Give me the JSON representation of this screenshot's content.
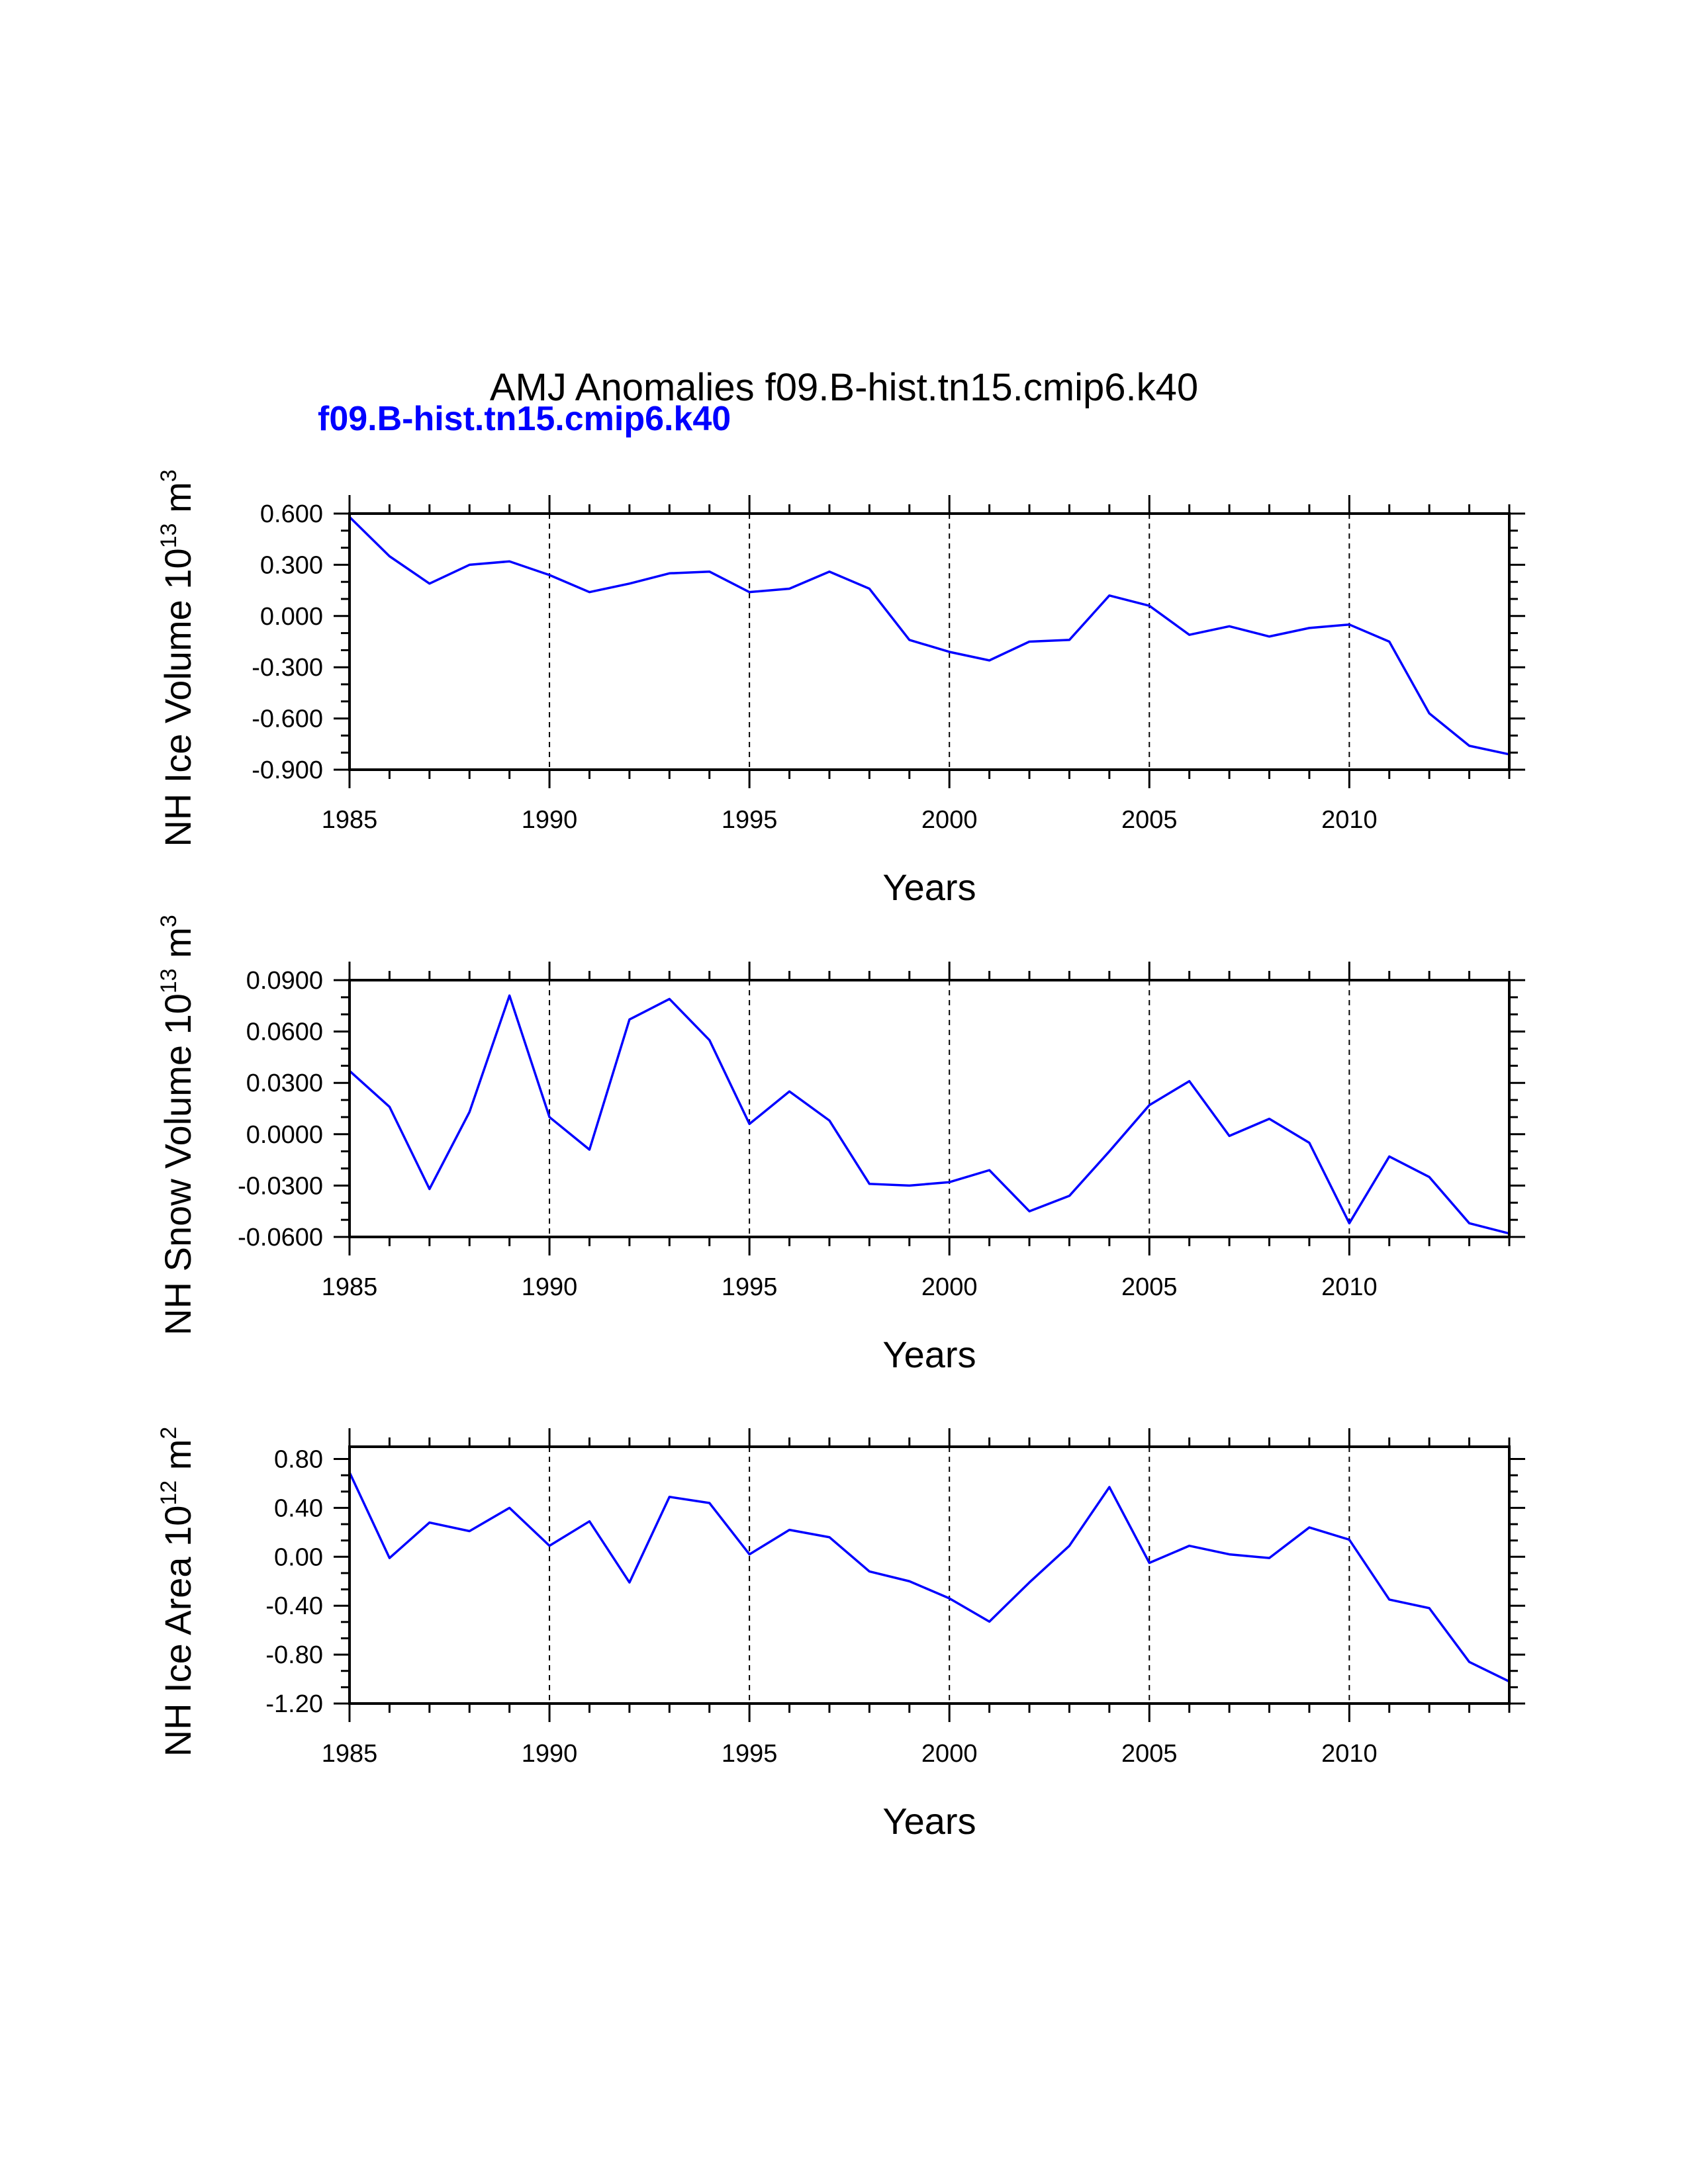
{
  "title": "AMJ Anomalies f09.B-hist.tn15.cmip6.k40",
  "subtitle": "f09.B-hist.tn15.cmip6.k40",
  "colors": {
    "series": "#0000ff",
    "subtitle": "#0000ff",
    "axes": "#000000"
  },
  "chart_data": [
    {
      "type": "line",
      "ylabel": "NH Ice Volume 10",
      "ylabel_exp": "13",
      "ylabel_unit": " m",
      "ylabel_unit_exp": "3",
      "xlabel": "Years",
      "xlim": [
        1985,
        2014
      ],
      "ylim": [
        -0.9,
        0.6
      ],
      "yticks": [
        -0.9,
        -0.6,
        -0.3,
        0.0,
        0.3,
        0.6
      ],
      "ytick_labels": [
        "-0.900",
        "-0.600",
        "-0.300",
        "0.000",
        "0.300",
        "0.600"
      ],
      "xticks": [
        1985,
        1990,
        1995,
        2000,
        2005,
        2010
      ],
      "xtick_labels": [
        "1985",
        "1990",
        "1995",
        "2000",
        "2005",
        "2010"
      ],
      "vlines": [
        1990,
        1995,
        2000,
        2005,
        2010
      ],
      "x": [
        1985,
        1986,
        1987,
        1988,
        1989,
        1990,
        1991,
        1992,
        1993,
        1994,
        1995,
        1996,
        1997,
        1998,
        1999,
        2000,
        2001,
        2002,
        2003,
        2004,
        2005,
        2006,
        2007,
        2008,
        2009,
        2010,
        2011,
        2012,
        2013,
        2014
      ],
      "values": [
        0.58,
        0.35,
        0.19,
        0.3,
        0.32,
        0.24,
        0.14,
        0.19,
        0.25,
        0.26,
        0.14,
        0.16,
        0.26,
        0.16,
        -0.14,
        -0.21,
        -0.26,
        -0.15,
        -0.14,
        0.12,
        0.06,
        -0.11,
        -0.06,
        -0.12,
        -0.07,
        -0.05,
        -0.15,
        -0.57,
        -0.76,
        -0.81
      ]
    },
    {
      "type": "line",
      "ylabel": "NH Snow Volume 10",
      "ylabel_exp": "13",
      "ylabel_unit": " m",
      "ylabel_unit_exp": "3",
      "xlabel": "Years",
      "xlim": [
        1985,
        2014
      ],
      "ylim": [
        -0.06,
        0.09
      ],
      "yticks": [
        -0.06,
        -0.03,
        0.0,
        0.03,
        0.06,
        0.09
      ],
      "ytick_labels": [
        "-0.0600",
        "-0.0300",
        "0.0000",
        "0.0300",
        "0.0600",
        "0.0900"
      ],
      "xticks": [
        1985,
        1990,
        1995,
        2000,
        2005,
        2010
      ],
      "xtick_labels": [
        "1985",
        "1990",
        "1995",
        "2000",
        "2005",
        "2010"
      ],
      "vlines": [
        1990,
        1995,
        2000,
        2005,
        2010
      ],
      "x": [
        1985,
        1986,
        1987,
        1988,
        1989,
        1990,
        1991,
        1992,
        1993,
        1994,
        1995,
        1996,
        1997,
        1998,
        1999,
        2000,
        2001,
        2002,
        2003,
        2004,
        2005,
        2006,
        2007,
        2008,
        2009,
        2010,
        2011,
        2012,
        2013,
        2014
      ],
      "values": [
        0.037,
        0.016,
        -0.032,
        0.013,
        0.081,
        0.01,
        -0.009,
        0.067,
        0.079,
        0.055,
        0.006,
        0.025,
        0.008,
        -0.029,
        -0.03,
        -0.028,
        -0.021,
        -0.045,
        -0.036,
        -0.01,
        0.017,
        0.031,
        -0.001,
        0.009,
        -0.005,
        -0.052,
        -0.013,
        -0.025,
        -0.052,
        -0.058
      ]
    },
    {
      "type": "line",
      "ylabel": "NH Ice Area 10",
      "ylabel_exp": "12",
      "ylabel_unit": " m",
      "ylabel_unit_exp": "2",
      "xlabel": "Years",
      "xlim": [
        1985,
        2014
      ],
      "ylim": [
        -1.2,
        0.9
      ],
      "yticks": [
        -1.2,
        -0.8,
        -0.4,
        0.0,
        0.4,
        0.8
      ],
      "ytick_labels": [
        "-1.20",
        "-0.80",
        "-0.40",
        "0.00",
        "0.40",
        "0.80"
      ],
      "xticks": [
        1985,
        1990,
        1995,
        2000,
        2005,
        2010
      ],
      "xtick_labels": [
        "1985",
        "1990",
        "1995",
        "2000",
        "2005",
        "2010"
      ],
      "vlines": [
        1990,
        1995,
        2000,
        2005,
        2010
      ],
      "x": [
        1985,
        1986,
        1987,
        1988,
        1989,
        1990,
        1991,
        1992,
        1993,
        1994,
        1995,
        1996,
        1997,
        1998,
        1999,
        2000,
        2001,
        2002,
        2003,
        2004,
        2005,
        2006,
        2007,
        2008,
        2009,
        2010,
        2011,
        2012,
        2013,
        2014
      ],
      "values": [
        0.69,
        -0.01,
        0.28,
        0.21,
        0.4,
        0.09,
        0.29,
        -0.21,
        0.49,
        0.44,
        0.02,
        0.22,
        0.16,
        -0.12,
        -0.2,
        -0.34,
        -0.53,
        -0.21,
        0.09,
        0.57,
        -0.05,
        0.09,
        0.02,
        -0.01,
        0.24,
        0.14,
        -0.35,
        -0.42,
        -0.86,
        -1.02
      ]
    }
  ]
}
